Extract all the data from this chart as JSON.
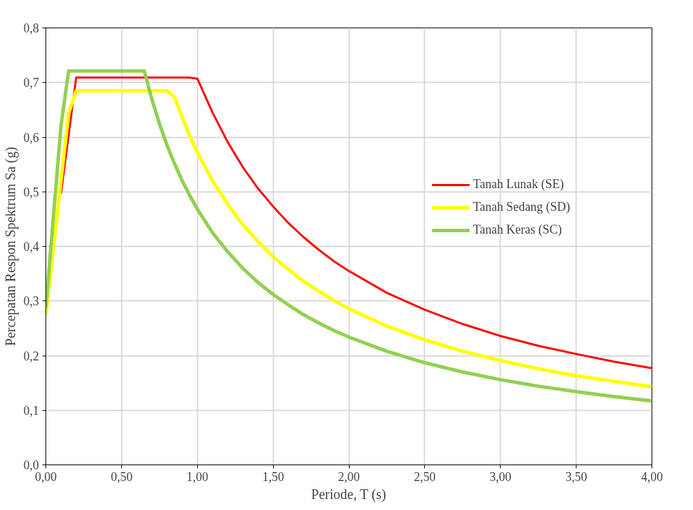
{
  "chart_data": {
    "type": "line",
    "xlabel": "Periode, T (s)",
    "ylabel": "Percepatan Respon Spektrum Sa (g)",
    "xlim": [
      0,
      4
    ],
    "ylim": [
      0,
      0.8
    ],
    "xticks": [
      {
        "value": 0,
        "label": "0,00"
      },
      {
        "value": 0.5,
        "label": "0,50"
      },
      {
        "value": 1,
        "label": "1,00"
      },
      {
        "value": 1.5,
        "label": "1,50"
      },
      {
        "value": 2,
        "label": "2,00"
      },
      {
        "value": 2.5,
        "label": "2,50"
      },
      {
        "value": 3,
        "label": "3,00"
      },
      {
        "value": 3.5,
        "label": "3,50"
      },
      {
        "value": 4,
        "label": "4,00"
      }
    ],
    "yticks": [
      {
        "value": 0,
        "label": "0,0"
      },
      {
        "value": 0.1,
        "label": "0,1"
      },
      {
        "value": 0.2,
        "label": "0,2"
      },
      {
        "value": 0.3,
        "label": "0,3"
      },
      {
        "value": 0.4,
        "label": "0,4"
      },
      {
        "value": 0.5,
        "label": "0,5"
      },
      {
        "value": 0.6,
        "label": "0,6"
      },
      {
        "value": 0.7,
        "label": "0,7"
      },
      {
        "value": 0.8,
        "label": "0,8"
      }
    ],
    "grid": true,
    "legend": "top right",
    "marker": "none",
    "line_style": "solid",
    "series": [
      {
        "name": "Tanah Lunak (SE)",
        "color": "#ff0000",
        "x": [
          0.1,
          0.2,
          0.95,
          1.0,
          1.1,
          1.2,
          1.3,
          1.4,
          1.5,
          1.6,
          1.7,
          1.8,
          1.9,
          2.0,
          2.25,
          2.5,
          2.75,
          3.0,
          3.25,
          3.5,
          3.75,
          4.0
        ],
        "values": [
          0.497,
          0.709,
          0.709,
          0.707,
          0.645,
          0.591,
          0.545,
          0.506,
          0.473,
          0.443,
          0.417,
          0.394,
          0.373,
          0.355,
          0.315,
          0.284,
          0.258,
          0.236,
          0.218,
          0.203,
          0.189,
          0.177
        ]
      },
      {
        "name": "Tanah Sedang (SD)",
        "color": "#ffff00",
        "x": [
          0,
          0.05,
          0.1,
          0.15,
          0.2,
          0.8,
          0.85,
          0.9,
          0.95,
          1.0,
          1.1,
          1.2,
          1.3,
          1.4,
          1.5,
          1.6,
          1.7,
          1.8,
          1.9,
          2.0,
          2.25,
          2.5,
          2.75,
          3.0,
          3.25,
          3.5,
          3.75,
          4.0
        ],
        "values": [
          0.274,
          0.397,
          0.52,
          0.643,
          0.685,
          0.685,
          0.673,
          0.636,
          0.602,
          0.572,
          0.52,
          0.477,
          0.44,
          0.409,
          0.381,
          0.358,
          0.336,
          0.318,
          0.301,
          0.286,
          0.254,
          0.229,
          0.208,
          0.191,
          0.176,
          0.163,
          0.153,
          0.143
        ]
      },
      {
        "name": "Tanah Keras (SC)",
        "color": "#92d050",
        "x": [
          0,
          0.05,
          0.1,
          0.15,
          0.65,
          0.7,
          0.75,
          0.8,
          0.85,
          0.9,
          0.95,
          1.0,
          1.1,
          1.2,
          1.3,
          1.4,
          1.5,
          1.6,
          1.7,
          1.8,
          1.9,
          2.0,
          2.25,
          2.5,
          2.75,
          3.0,
          3.25,
          3.5,
          3.75,
          4.0
        ],
        "values": [
          0.288,
          0.455,
          0.621,
          0.721,
          0.721,
          0.669,
          0.624,
          0.585,
          0.551,
          0.52,
          0.493,
          0.468,
          0.425,
          0.39,
          0.36,
          0.334,
          0.312,
          0.293,
          0.275,
          0.26,
          0.246,
          0.234,
          0.208,
          0.187,
          0.17,
          0.156,
          0.144,
          0.134,
          0.125,
          0.117
        ]
      }
    ]
  }
}
